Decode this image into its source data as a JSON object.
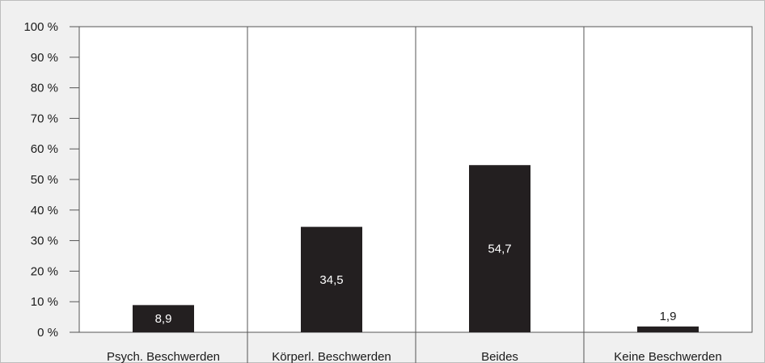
{
  "chart_data": {
    "type": "bar",
    "categories": [
      "Psych. Beschwerden",
      "Körperl. Beschwerden",
      "Beides",
      "Keine Beschwerden"
    ],
    "values": [
      8.9,
      34.5,
      54.7,
      1.9
    ],
    "data_labels": [
      "8,9",
      "34,5",
      "54,7",
      "1,9"
    ],
    "y_ticks": [
      "0 %",
      "10 %",
      "20 %",
      "30 %",
      "40 %",
      "50 %",
      "60 %",
      "70 %",
      "80 %",
      "90 %",
      "100 %"
    ],
    "ylim": [
      0,
      100
    ],
    "title": "",
    "xlabel": "",
    "ylabel": "",
    "grid": "vertical category separators",
    "colors": {
      "bar": "#231f20",
      "outer_background": "#f0f0f0",
      "plot_background": "#ffffff",
      "label_inside": "#ffffff",
      "label_outside": "#1a1a1a",
      "axis": "#555555"
    }
  }
}
